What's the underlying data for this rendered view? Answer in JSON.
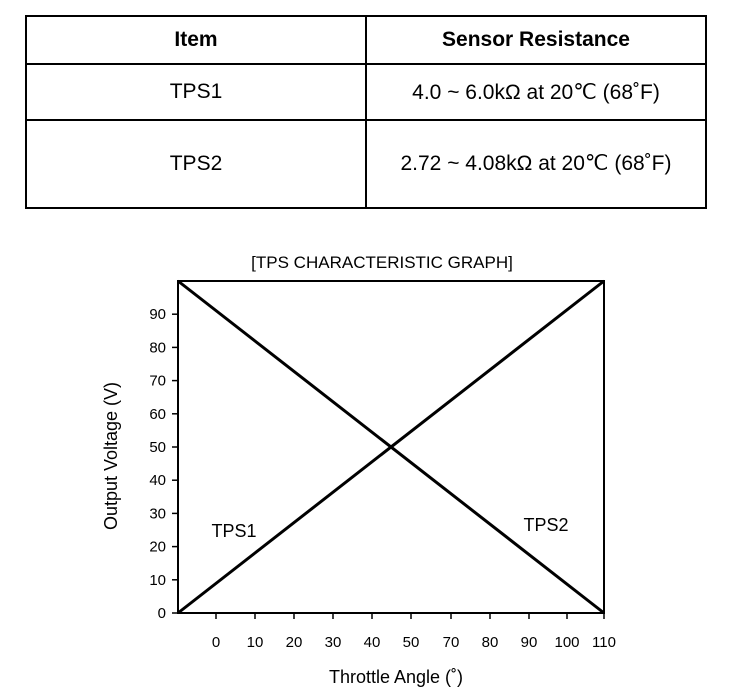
{
  "table": {
    "headers": [
      "Item",
      "Sensor Resistance"
    ],
    "rows": [
      {
        "item": "TPS1",
        "resistance": "4.0 ~ 6.0kΩ at 20℃ (68˚F)"
      },
      {
        "item": "TPS2",
        "resistance": "2.72 ~ 4.08kΩ at 20℃ (68˚F)"
      }
    ]
  },
  "chart_data": {
    "type": "line",
    "title": "[TPS CHARACTERISTIC GRAPH]",
    "xlabel": "Throttle Angle (˚)",
    "ylabel": "Output Voltage (V)",
    "xlim": [
      -10,
      110
    ],
    "ylim": [
      0,
      100
    ],
    "xticks": [
      0,
      10,
      20,
      30,
      40,
      50,
      70,
      80,
      90,
      100,
      110
    ],
    "yticks": [
      0,
      10,
      20,
      30,
      40,
      50,
      60,
      70,
      80,
      90
    ],
    "grid": false,
    "legend": "none",
    "series": [
      {
        "name": "TPS1",
        "x": [
          -10,
          110
        ],
        "y": [
          0,
          100
        ]
      },
      {
        "name": "TPS2",
        "x": [
          -10,
          110
        ],
        "y": [
          100,
          0
        ]
      }
    ]
  }
}
